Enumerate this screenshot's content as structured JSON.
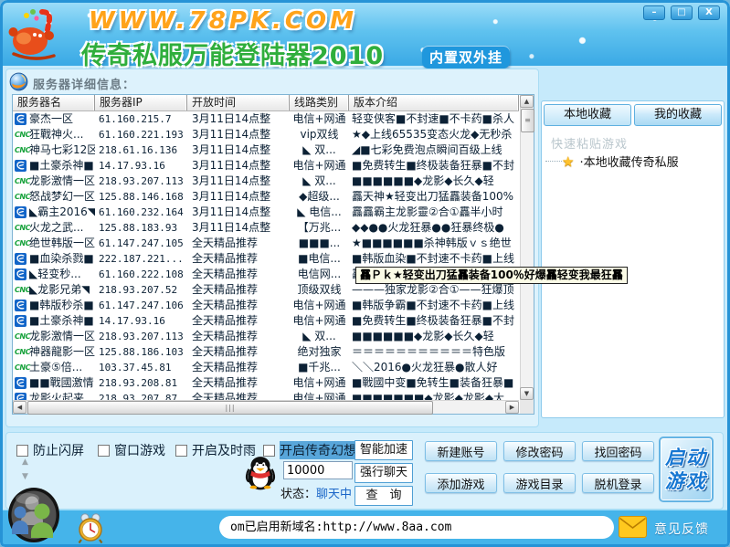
{
  "window": {
    "site_url": "WWW.78PK.COM",
    "app_title": "传奇私服万能登陆器2010",
    "title_badge": "内置双外挂",
    "controls": {
      "minimize": "–",
      "maximize": "□",
      "close": "X"
    }
  },
  "server_panel": {
    "section_label": "服务器详细信息：",
    "columns": [
      "服务器名",
      "服务器IP",
      "开放时间",
      "线路类别",
      "版本介绍"
    ],
    "rows": [
      {
        "icon": "telecom",
        "name": "豪杰一区",
        "ip": "61.160.215.7",
        "time": "3月11日14点整",
        "line": "电信+网通",
        "version": "轻变侠客■不封速■不卡药■杀人"
      },
      {
        "icon": "cnc",
        "name": "狂戰神火...",
        "ip": "61.160.221.193",
        "time": "3月11日14点整",
        "line": "vip双线",
        "version": "★◆上线65535变态火龙◆无秒杀"
      },
      {
        "icon": "cnc",
        "name": "神马七彩12区",
        "ip": "218.61.16.136",
        "time": "3月11日14点整",
        "line": "◣ 双...",
        "version": "◢■七彩免费泡点瞬间百级上线"
      },
      {
        "icon": "telecom",
        "name": "■土豪杀神■",
        "ip": "14.17.93.16",
        "time": "3月11日14点整",
        "line": "电信+网通",
        "version": "■免费转生■终极装备狂暴■不封"
      },
      {
        "icon": "cnc",
        "name": "龙影激情一区",
        "ip": "218.93.207.113",
        "time": "3月11日14点整",
        "line": "◣ 双...",
        "version": "■■■■■■◆龙影◆长久◆轻"
      },
      {
        "icon": "cnc",
        "name": "怒战梦幻一区",
        "ip": "125.88.146.168",
        "time": "3月11日14点整",
        "line": "◆超级...",
        "version": "靐天神★轻变出刀猛靐装备100%"
      },
      {
        "icon": "telecom",
        "name": "◣霸主2016◥",
        "ip": "61.160.232.164",
        "time": "3月11日14点整",
        "line": "◣ 电信...",
        "version": "靐靐霸主龙影靈②合①靐半小时"
      },
      {
        "icon": "cnc",
        "name": "火龙之武...",
        "ip": "125.88.183.93",
        "time": "3月11日14点整",
        "line": "【万兆...",
        "version": "◆◆●●火龙狂暴●●狂暴终极●"
      },
      {
        "icon": "cnc",
        "name": "绝世韩版一区",
        "ip": "61.147.247.105",
        "time": "全天精品推荐",
        "line": "■■■...",
        "version": "★■■■■■■杀神韩版ｖｓ绝世"
      },
      {
        "icon": "telecom",
        "name": "■血染杀戮■",
        "ip": "222.187.221...",
        "time": "全天精品推荐",
        "line": "■电信...",
        "version": "■韩版血染■不封速不卡药■上线"
      },
      {
        "icon": "telecom",
        "name": "◣轻变秒...",
        "ip": "61.160.222.108",
        "time": "全天精品推荐",
        "line": "电信网...",
        "version": "靐Ｐｋ★轻变出刀猛靐装备100％好爆"
      },
      {
        "icon": "cnc",
        "name": "◣龙影兄弟◥",
        "ip": "218.93.207.52",
        "time": "全天精品推荐",
        "line": "顶级双线",
        "version": "———独家龙影②合①——狂爆顶"
      },
      {
        "icon": "telecom",
        "name": "■韩版秒杀■",
        "ip": "61.147.247.106",
        "time": "全天精品推荐",
        "line": "电信+网通",
        "version": "■韩版争霸■不封速不卡药■上线"
      },
      {
        "icon": "telecom",
        "name": "■土豪杀神■",
        "ip": "14.17.93.16",
        "time": "全天精品推荐",
        "line": "电信+网通",
        "version": "■免费转生■终极装备狂暴■不封"
      },
      {
        "icon": "cnc",
        "name": "龙影激情一区",
        "ip": "218.93.207.113",
        "time": "全天精品推荐",
        "line": "◣ 双...",
        "version": "■■■■■■◆龙影◆长久◆轻"
      },
      {
        "icon": "cnc",
        "name": "神器龍影一区",
        "ip": "125.88.186.103",
        "time": "全天精品推荐",
        "line": "绝对独家",
        "version": "＝＝＝＝＝＝＝＝＝＝＝特色版"
      },
      {
        "icon": "cnc",
        "name": "土豪⑤倍...",
        "ip": "103.37.45.81",
        "time": "全天精品推荐",
        "line": "■千兆...",
        "version": "＼＼2016●火龙狂暴●散人好"
      },
      {
        "icon": "telecom",
        "name": "■■戰國激情",
        "ip": "218.93.208.81",
        "time": "全天精品推荐",
        "line": "电信+网通",
        "version": "■戰國中变■免转生■装备狂暴■"
      },
      {
        "icon": "telecom",
        "name": "龙影火起来",
        "ip": "218.93.207.87",
        "time": "全天精品推荐",
        "line": "电信+网通",
        "version": "■■■■■■■◆龙影◆龙影◆大"
      }
    ]
  },
  "tooltip_text": "靐Ｐｋ★轻变出刀猛靐装备100％好爆靐轻变我最狂靐",
  "favorites_panel": {
    "tabs": [
      "本地收藏",
      "我的收藏"
    ],
    "hint": "快速粘贴游戏",
    "tree_item": "·本地收藏传奇私服"
  },
  "controls_panel": {
    "checkboxes": [
      {
        "label": "防止闪屏",
        "checked": false,
        "highlighted": false
      },
      {
        "label": "窗口游戏",
        "checked": false,
        "highlighted": false
      },
      {
        "label": "开启及时雨",
        "checked": false,
        "highlighted": false
      },
      {
        "label": "开启传奇幻想",
        "checked": false,
        "highlighted": true
      }
    ],
    "qq_number": "10000",
    "status_label": "状态：",
    "status_value": "聊天中",
    "tool_buttons": [
      "智能加速",
      "强行聊天",
      "查　询"
    ],
    "account_buttons": [
      "新建账号",
      "修改密码",
      "找回密码",
      "添加游戏",
      "游戏目录",
      "脱机登录"
    ],
    "launch_button": {
      "line1": "启动",
      "line2": "游戏"
    }
  },
  "status_bar": {
    "marquee": "om已启用新域名:http://www.8aa.com",
    "feedback_label": "意见反馈"
  },
  "colors": {
    "frame_blue": "#2693d6",
    "banner_site": "#ffa31a",
    "banner_title": "#2fae3c",
    "telecom_blue": "#1265c8",
    "cnc_green": "#17a23b",
    "highlight_blue": "#58a6da",
    "bottombar_blue": "#45b4ea",
    "tooltip_bg": "#fbfbe6"
  }
}
